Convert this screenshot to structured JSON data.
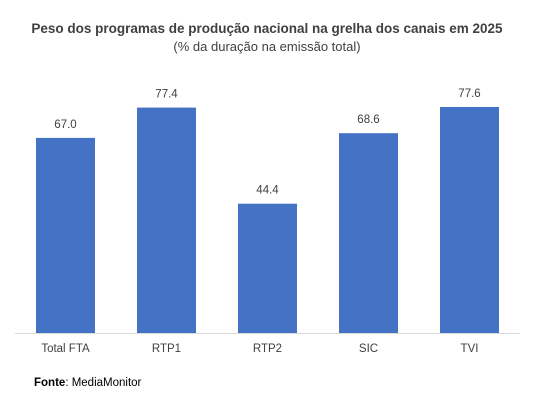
{
  "chart_data": {
    "type": "bar",
    "title": "Peso dos programas de produção nacional na grelha dos canais em 2025",
    "subtitle": "(% da duração na emissão total)",
    "categories": [
      "Total FTA",
      "RTP1",
      "RTP2",
      "SIC",
      "TVI"
    ],
    "values": [
      67.0,
      77.4,
      44.4,
      68.6,
      77.6
    ],
    "value_labels": [
      "67.0",
      "77.4",
      "44.4",
      "68.6",
      "77.6"
    ],
    "xlabel": "",
    "ylabel": "",
    "ylim": [
      0,
      77.6
    ],
    "grid": false,
    "legend": "none",
    "bar_color": "#4472C4"
  },
  "source": {
    "label": "Fonte",
    "text": ": MediaMonitor"
  }
}
